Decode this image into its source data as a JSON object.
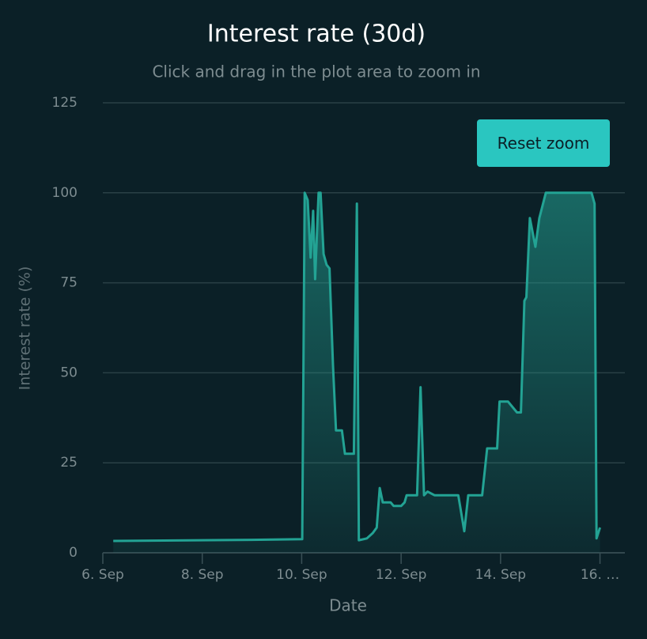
{
  "chart_data": {
    "type": "area",
    "title": "Interest rate (30d)",
    "subtitle": "Click and drag in the plot area to zoom in",
    "x_label": "Date",
    "y_label": "Interest rate (%)",
    "button": "Reset zoom",
    "color": "#23a394",
    "grid": true,
    "xlim": [
      6,
      16.5
    ],
    "ylim": [
      0,
      125
    ],
    "xticks": [
      {
        "value": 6,
        "label": "6. Sep"
      },
      {
        "value": 8,
        "label": "8. Sep"
      },
      {
        "value": 10,
        "label": "10. Sep"
      },
      {
        "value": 12,
        "label": "12. Sep"
      },
      {
        "value": 14,
        "label": "14. Sep"
      },
      {
        "value": 16,
        "label": "16. …"
      }
    ],
    "yticks": [
      0,
      25,
      50,
      75,
      100,
      125
    ],
    "x": [
      6.21,
      9,
      10.01,
      10.06,
      10.12,
      10.18,
      10.23,
      10.27,
      10.34,
      10.38,
      10.44,
      10.5,
      10.56,
      10.63,
      10.69,
      10.81,
      10.87,
      11.05,
      11.11,
      11.15,
      11.31,
      11.43,
      11.51,
      11.57,
      11.63,
      11.79,
      11.85,
      12.0,
      12.07,
      12.11,
      12.32,
      12.39,
      12.46,
      12.53,
      12.67,
      13.15,
      13.27,
      13.35,
      13.63,
      13.73,
      13.93,
      13.98,
      14.15,
      14.33,
      14.41,
      14.48,
      14.52,
      14.59,
      14.7,
      14.78,
      14.91,
      15.83,
      15.89,
      15.93,
      16.0
    ],
    "values": [
      3.3,
      3.6,
      3.8,
      100,
      98,
      82,
      95,
      76,
      100,
      100,
      83,
      80,
      79,
      52,
      34,
      34,
      27.5,
      27.5,
      97,
      3.5,
      4,
      5.5,
      7,
      18,
      14,
      14,
      13,
      13,
      14,
      16,
      16,
      46,
      16,
      17,
      16,
      16,
      6,
      16,
      16,
      29,
      29,
      42,
      42,
      39,
      39,
      70,
      71,
      93,
      85,
      93,
      100,
      100,
      97,
      4,
      7
    ]
  }
}
